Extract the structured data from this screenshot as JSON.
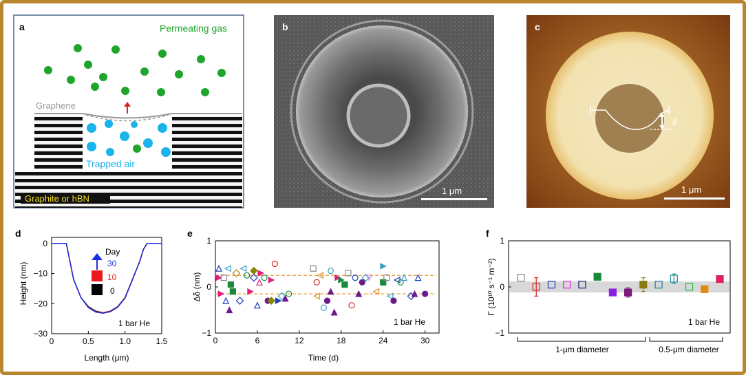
{
  "figure": {
    "panel_a": {
      "label": "a",
      "permeating_gas": "Permeating gas",
      "graphene": "Graphene",
      "trapped_air": "Trapped air",
      "substrate": "Graphite or  hBN",
      "colors": {
        "gas": "#1ea52b",
        "air": "#1ab3ea",
        "arrow": "#e02020",
        "label_green": "#1ea52b",
        "label_yellow": "#f0e020"
      }
    },
    "panel_b": {
      "label": "b",
      "scale_bar": "1 μm"
    },
    "panel_c": {
      "label": "c",
      "scale_bar": "1 μm",
      "delta": "δ"
    },
    "panel_d": {
      "label": "d",
      "ylabel": "Height (nm)",
      "xlabel": "Length (μm)",
      "legend_title": "Day",
      "legend": [
        {
          "label": "30",
          "color": "#1a2fe0"
        },
        {
          "label": "10",
          "color": "#e81a1a"
        },
        {
          "label": "0",
          "color": "#000000"
        }
      ],
      "annotation": "1 bar He",
      "x_ticks": [
        "0",
        "0.5",
        "1.0",
        "1.5"
      ],
      "y_ticks": [
        "0",
        "−10",
        "−20",
        "−30"
      ]
    },
    "panel_e": {
      "label": "e",
      "ylabel": "Δδ (nm)",
      "xlabel": "Time (d)",
      "annotation": "1 bar He",
      "x_ticks": [
        "0",
        "6",
        "12",
        "18",
        "24",
        "30"
      ],
      "y_ticks": [
        "1",
        "0",
        "−1"
      ]
    },
    "panel_f": {
      "label": "f",
      "ylabel": "Γ (10¹⁰ s⁻¹ m⁻²)",
      "annotation": "1 bar He",
      "group_1": "1-μm diameter",
      "group_2": "0.5-μm diameter",
      "y_ticks": [
        "1",
        "0",
        "−1"
      ]
    }
  },
  "chart_data": [
    {
      "type": "line",
      "title": "",
      "xlabel": "Length (μm)",
      "ylabel": "Height (nm)",
      "xlim": [
        0,
        1.5
      ],
      "ylim": [
        -30,
        2
      ],
      "series": [
        {
          "name": "Day 0",
          "color": "#000000",
          "x": [
            0,
            0.2,
            0.25,
            0.3,
            0.4,
            0.5,
            0.6,
            0.7,
            0.8,
            0.9,
            1.0,
            1.1,
            1.2,
            1.25,
            1.3,
            1.5
          ],
          "y": [
            0,
            0,
            -6,
            -12,
            -18,
            -21,
            -22.5,
            -23,
            -22.5,
            -21,
            -18,
            -12,
            -6,
            -2,
            0,
            0
          ]
        },
        {
          "name": "Day 10",
          "color": "#e81a1a",
          "x": [
            0,
            0.2,
            0.25,
            0.3,
            0.4,
            0.5,
            0.6,
            0.7,
            0.8,
            0.9,
            1.0,
            1.1,
            1.2,
            1.25,
            1.3,
            1.5
          ],
          "y": [
            0,
            0,
            -6,
            -12,
            -18,
            -21.2,
            -22.7,
            -23,
            -22.6,
            -21.1,
            -18,
            -12,
            -6,
            -2,
            0,
            0
          ]
        },
        {
          "name": "Day 30",
          "color": "#1a2fe0",
          "x": [
            0,
            0.2,
            0.25,
            0.3,
            0.4,
            0.5,
            0.6,
            0.7,
            0.8,
            0.9,
            1.0,
            1.1,
            1.2,
            1.25,
            1.3,
            1.5
          ],
          "y": [
            0,
            0,
            -6,
            -12,
            -18,
            -21.3,
            -22.8,
            -23.2,
            -22.7,
            -21.2,
            -18.2,
            -12.2,
            -6,
            -2,
            0,
            0
          ]
        }
      ],
      "annotation": "1 bar He"
    },
    {
      "type": "scatter",
      "title": "",
      "xlabel": "Time (d)",
      "ylabel": "Δδ (nm)",
      "xlim": [
        0,
        32
      ],
      "ylim": [
        -1,
        1
      ],
      "reference_lines": [
        0.25,
        -0.15
      ],
      "points": [
        {
          "x": 0.5,
          "y": 0.4,
          "c": "#1a3fc0",
          "m": "tri"
        },
        {
          "x": 0.5,
          "y": 0.2,
          "c": "#e02080",
          "m": "tri-r"
        },
        {
          "x": 0.8,
          "y": -0.15,
          "c": "#e02080",
          "m": "tri-r"
        },
        {
          "x": 1.2,
          "y": 0.2,
          "c": "#888888",
          "m": "sq"
        },
        {
          "x": 1.5,
          "y": -0.3,
          "c": "#1a3fc0",
          "m": "tri"
        },
        {
          "x": 1.8,
          "y": 0.4,
          "c": "#3aa0c0",
          "m": "tri-l"
        },
        {
          "x": 2,
          "y": -0.5,
          "c": "#6a1a8a",
          "m": "tri-f"
        },
        {
          "x": 2.2,
          "y": 0.05,
          "c": "#1a8a3a",
          "m": "sqf"
        },
        {
          "x": 2.5,
          "y": -0.1,
          "c": "#1a8a3a",
          "m": "sqf"
        },
        {
          "x": 3,
          "y": 0.3,
          "c": "#b8860b",
          "m": "dia"
        },
        {
          "x": 3.5,
          "y": -0.3,
          "c": "#1a3fc0",
          "m": "dia"
        },
        {
          "x": 4,
          "y": 0.4,
          "c": "#3aa0c0",
          "m": "tri-l"
        },
        {
          "x": 4.5,
          "y": 0.25,
          "c": "#1a8a3a",
          "m": "circ"
        },
        {
          "x": 5,
          "y": -0.1,
          "c": "#e02080",
          "m": "tri-r"
        },
        {
          "x": 5.5,
          "y": 0.35,
          "c": "#888800",
          "m": "dia-f"
        },
        {
          "x": 5.5,
          "y": 0.2,
          "c": "#1a3fc0",
          "m": "dia"
        },
        {
          "x": 6,
          "y": -0.4,
          "c": "#1a3fc0",
          "m": "tri"
        },
        {
          "x": 6.3,
          "y": 0.1,
          "c": "#e02080",
          "m": "tri"
        },
        {
          "x": 6.5,
          "y": 0.3,
          "c": "#e02080",
          "m": "tri-r"
        },
        {
          "x": 7,
          "y": 0.2,
          "c": "#1a8a3a",
          "m": "circ"
        },
        {
          "x": 7.5,
          "y": -0.3,
          "c": "#6a1a8a",
          "m": "circ-f"
        },
        {
          "x": 8,
          "y": 0.15,
          "c": "#e02080",
          "m": "tri-r"
        },
        {
          "x": 8,
          "y": -0.3,
          "c": "#888800",
          "m": "dia-f"
        },
        {
          "x": 8.5,
          "y": 0.5,
          "c": "#e02020",
          "m": "circ"
        },
        {
          "x": 9,
          "y": -0.3,
          "c": "#1a3fc0",
          "m": "tri-r"
        },
        {
          "x": 9.5,
          "y": -0.2,
          "c": "#3aa0c0",
          "m": "dia"
        },
        {
          "x": 10,
          "y": -0.25,
          "c": "#6a1a8a",
          "m": "tri-f"
        },
        {
          "x": 10.5,
          "y": -0.15,
          "c": "#1a8a3a",
          "m": "circ"
        },
        {
          "x": 14,
          "y": 0.4,
          "c": "#888888",
          "m": "sq"
        },
        {
          "x": 14.5,
          "y": 0.1,
          "c": "#e02020",
          "m": "circ"
        },
        {
          "x": 14.5,
          "y": -0.2,
          "c": "#e08a20",
          "m": "tri-l"
        },
        {
          "x": 15,
          "y": 0.25,
          "c": "#e08a20",
          "m": "tri-l"
        },
        {
          "x": 15.5,
          "y": -0.45,
          "c": "#3aa0c0",
          "m": "circ"
        },
        {
          "x": 16,
          "y": -0.3,
          "c": "#6a1a8a",
          "m": "circ-f"
        },
        {
          "x": 16.5,
          "y": 0.35,
          "c": "#3aa0c0",
          "m": "hex"
        },
        {
          "x": 16.5,
          "y": -0.1,
          "c": "#6a1a8a",
          "m": "tri-f"
        },
        {
          "x": 17,
          "y": -0.55,
          "c": "#6a1a8a",
          "m": "tri-f"
        },
        {
          "x": 17.5,
          "y": 0.2,
          "c": "#e02080",
          "m": "tri-r"
        },
        {
          "x": 18,
          "y": 0.15,
          "c": "#1a8a3a",
          "m": "tri-r"
        },
        {
          "x": 18.5,
          "y": 0.05,
          "c": "#1a8a3a",
          "m": "sqf"
        },
        {
          "x": 19,
          "y": 0.3,
          "c": "#888888",
          "m": "sq"
        },
        {
          "x": 19.5,
          "y": -0.4,
          "c": "#e02020",
          "m": "circ"
        },
        {
          "x": 20,
          "y": 0.2,
          "c": "#1a3fc0",
          "m": "circ"
        },
        {
          "x": 20.5,
          "y": -0.15,
          "c": "#6a1a8a",
          "m": "tri-f"
        },
        {
          "x": 21,
          "y": 0.1,
          "c": "#6a1a8a",
          "m": "circ-f"
        },
        {
          "x": 21.5,
          "y": 0.2,
          "c": "#3aa0c0",
          "m": "dia"
        },
        {
          "x": 22,
          "y": 0.2,
          "c": "#e080e0",
          "m": "tri-d"
        },
        {
          "x": 23,
          "y": -0.1,
          "c": "#e08a20",
          "m": "tri-l"
        },
        {
          "x": 24,
          "y": 0.45,
          "c": "#3aa0c0",
          "m": "tri-r"
        },
        {
          "x": 24,
          "y": 0.1,
          "c": "#1a8a3a",
          "m": "sqf"
        },
        {
          "x": 24.5,
          "y": 0.2,
          "c": "#888888",
          "m": "sq"
        },
        {
          "x": 25,
          "y": -0.2,
          "c": "#3aa0c0",
          "m": "tri-l"
        },
        {
          "x": 25.5,
          "y": -0.3,
          "c": "#6a1a8a",
          "m": "circ-f"
        },
        {
          "x": 26,
          "y": 0.15,
          "c": "#1a3fc0",
          "m": "tri-l"
        },
        {
          "x": 26.5,
          "y": 0.1,
          "c": "#1a8a3a",
          "m": "circ"
        },
        {
          "x": 27,
          "y": 0.2,
          "c": "#3aa0c0",
          "m": "tri"
        },
        {
          "x": 28,
          "y": -0.2,
          "c": "#1a3fc0",
          "m": "dia"
        },
        {
          "x": 28.5,
          "y": -0.15,
          "c": "#6a1a8a",
          "m": "tri-f"
        },
        {
          "x": 29,
          "y": 0.2,
          "c": "#1a3fc0",
          "m": "tri"
        },
        {
          "x": 30,
          "y": -0.15,
          "c": "#6a1a8a",
          "m": "circ-f"
        }
      ],
      "annotation": "1 bar He"
    },
    {
      "type": "scatter",
      "title": "",
      "xlabel": "",
      "ylabel": "Γ (10¹⁰ s⁻¹ m⁻²)",
      "ylim": [
        -1,
        1
      ],
      "shaded_band": [
        -0.12,
        0.12
      ],
      "groups": [
        "1-μm diameter",
        "0.5-μm diameter"
      ],
      "points": [
        {
          "i": 0,
          "y": 0.2,
          "c": "#888888",
          "m": "sq",
          "err": 0
        },
        {
          "i": 1,
          "y": 0.0,
          "c": "#e02020",
          "m": "sq",
          "err": 0.2
        },
        {
          "i": 2,
          "y": 0.05,
          "c": "#1a3fc0",
          "m": "sq",
          "err": 0
        },
        {
          "i": 3,
          "y": 0.05,
          "c": "#e020e0",
          "m": "sq",
          "err": 0
        },
        {
          "i": 4,
          "y": 0.05,
          "c": "#1a2080",
          "m": "sq",
          "err": 0
        },
        {
          "i": 5,
          "y": 0.22,
          "c": "#1a8a3a",
          "m": "sqf",
          "err": 0
        },
        {
          "i": 6,
          "y": -0.12,
          "c": "#8a20e0",
          "m": "sqf",
          "err": 0
        },
        {
          "i": 7,
          "y": -0.12,
          "c": "#7a1a7a",
          "m": "sqf",
          "err": 0.1
        },
        {
          "i": 8,
          "y": 0.05,
          "c": "#8a7a10",
          "m": "sqf",
          "err": 0.15
        },
        {
          "i": 9,
          "y": 0.05,
          "c": "#1a7a9a",
          "m": "sq",
          "err": 0
        },
        {
          "i": 10,
          "y": 0.18,
          "c": "#1a8a9a",
          "m": "sq",
          "err": 0.1
        },
        {
          "i": 11,
          "y": 0.0,
          "c": "#1ac040",
          "m": "sq",
          "err": 0
        },
        {
          "i": 12,
          "y": -0.05,
          "c": "#e08a10",
          "m": "sqf",
          "err": 0
        },
        {
          "i": 13,
          "y": 0.17,
          "c": "#e0205a",
          "m": "sqf",
          "err": 0.05
        }
      ],
      "annotation": "1 bar He"
    }
  ]
}
